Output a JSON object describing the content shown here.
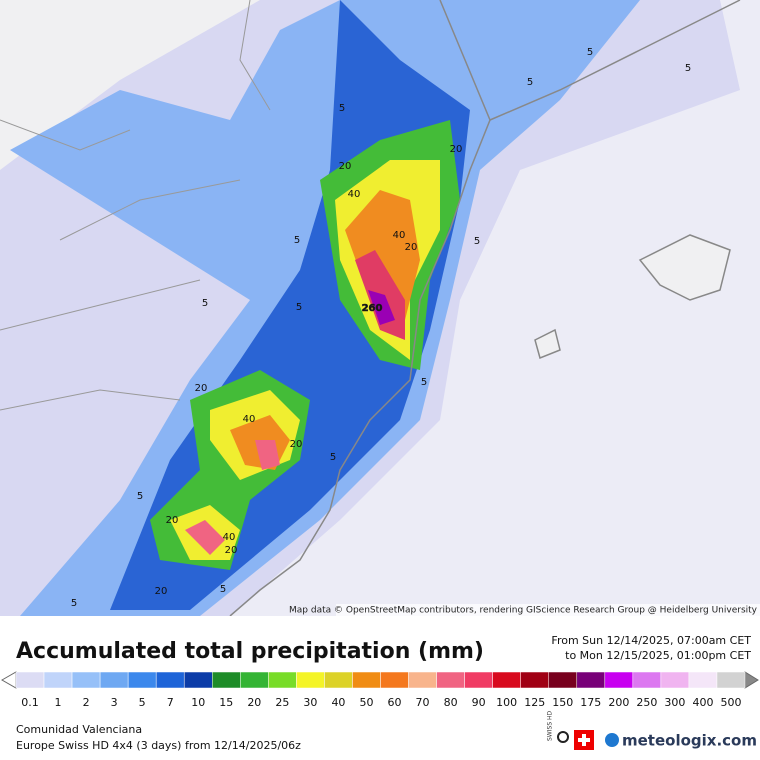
{
  "map": {
    "contour_labels": [
      "5",
      "5",
      "5",
      "5",
      "5",
      "5",
      "5",
      "5",
      "5",
      "5",
      "5",
      "5",
      "5",
      "20",
      "20",
      "20",
      "20",
      "20",
      "20",
      "20",
      "20",
      "40",
      "40",
      "40",
      "40",
      "260"
    ],
    "attribution": "Map data © OpenStreetMap contributors, rendering GIScience Research Group @ Heidelberg University"
  },
  "legend": {
    "title": "Accumulated total precipitation (mm)",
    "from": "From Sun 12/14/2025, 07:00am CET",
    "to": "to Mon 12/15/2025, 01:00pm CET",
    "scale": [
      {
        "label": "0.1",
        "color": "#dcdcf4"
      },
      {
        "label": "1",
        "color": "#c0d4fa"
      },
      {
        "label": "2",
        "color": "#96c0f8"
      },
      {
        "label": "3",
        "color": "#6ea8f2"
      },
      {
        "label": "5",
        "color": "#3c88ec"
      },
      {
        "label": "7",
        "color": "#1e64d8"
      },
      {
        "label": "10",
        "color": "#0c3ca8"
      },
      {
        "label": "15",
        "color": "#1e8c28"
      },
      {
        "label": "20",
        "color": "#34b434"
      },
      {
        "label": "25",
        "color": "#78dc28"
      },
      {
        "label": "30",
        "color": "#f4f428"
      },
      {
        "label": "40",
        "color": "#dcd228"
      },
      {
        "label": "50",
        "color": "#f08c14"
      },
      {
        "label": "60",
        "color": "#f4781e"
      },
      {
        "label": "70",
        "color": "#f8b48c"
      },
      {
        "label": "80",
        "color": "#f06482"
      },
      {
        "label": "90",
        "color": "#f03c64"
      },
      {
        "label": "100",
        "color": "#d80a1e"
      },
      {
        "label": "125",
        "color": "#a00014"
      },
      {
        "label": "150",
        "color": "#78001e"
      },
      {
        "label": "175",
        "color": "#780078"
      },
      {
        "label": "200",
        "color": "#c800f0"
      },
      {
        "label": "250",
        "color": "#dc78f0"
      },
      {
        "label": "300",
        "color": "#f0b4f0"
      },
      {
        "label": "400",
        "color": "#f4e6f8"
      },
      {
        "label": "500",
        "color": "#d2d2d2"
      }
    ]
  },
  "footer": {
    "region": "Comunidad Valenciana",
    "model": "Europe Swiss HD 4x4 (3 days) from  12/14/2025/06z",
    "badge": "SWISS HD",
    "brand": "meteologix.com"
  }
}
